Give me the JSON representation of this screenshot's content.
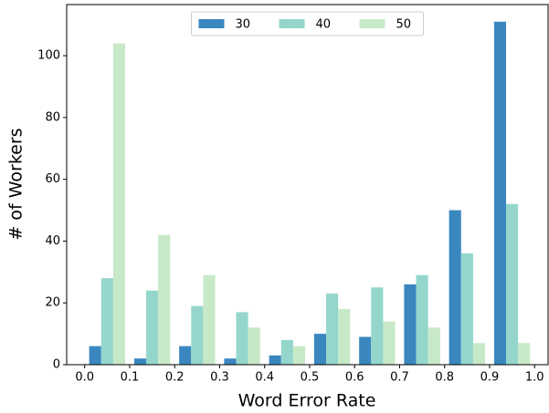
{
  "chart_data": {
    "type": "histogram",
    "x_label": "Word Error Rate",
    "y_label": "# of Workers",
    "bins": [
      0.0,
      0.1,
      0.2,
      0.3,
      0.4,
      0.5,
      0.6,
      0.7,
      0.8,
      0.9,
      1.0
    ],
    "series": [
      {
        "name": "30",
        "color": "#3a87c0",
        "values": [
          6,
          2,
          6,
          2,
          3,
          10,
          9,
          26,
          50,
          111
        ]
      },
      {
        "name": "40",
        "color": "#94d6cc",
        "values": [
          28,
          24,
          19,
          17,
          8,
          23,
          25,
          29,
          36,
          52
        ]
      },
      {
        "name": "50",
        "color": "#c8e9c8",
        "values": [
          104,
          42,
          29,
          12,
          6,
          18,
          14,
          12,
          7,
          7
        ]
      }
    ],
    "xlim": [
      -0.04,
      1.03
    ],
    "xticks": [
      {
        "value": 0,
        "label": "0.0"
      },
      0.1,
      0.2,
      0.3,
      0.4,
      0.5,
      0.6,
      0.7,
      0.8,
      0.9,
      {
        "value": 1,
        "label": "1.0"
      }
    ],
    "ylim": [
      0,
      116.55
    ],
    "yticks": [
      0,
      20,
      40,
      60,
      80,
      100
    ],
    "legend": "top"
  }
}
